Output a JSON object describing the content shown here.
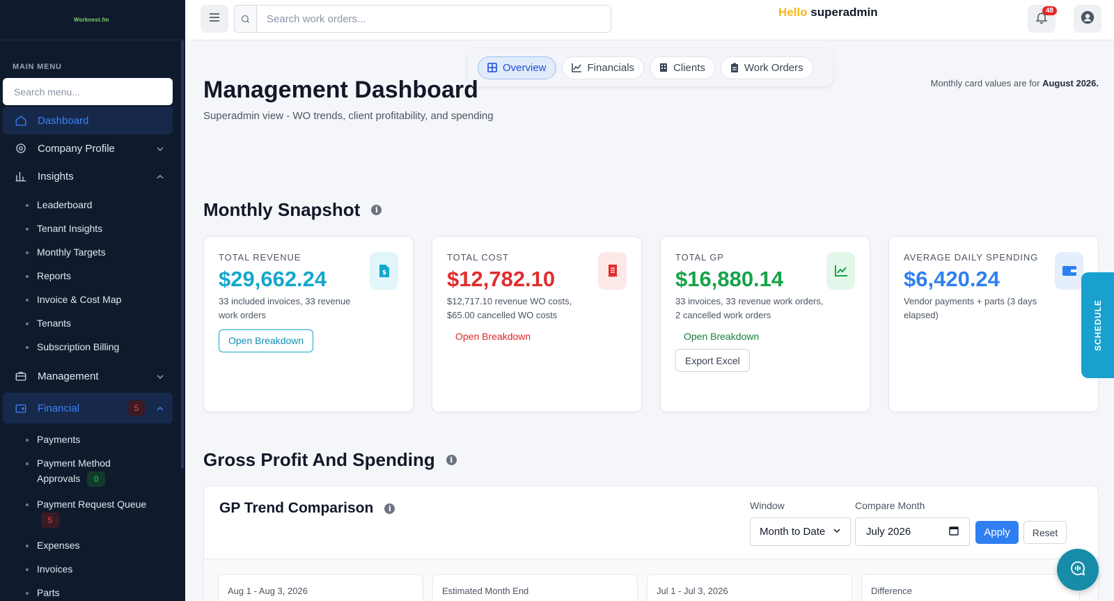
{
  "brand": "Worknest.fm",
  "sidebar": {
    "heading": "MAIN MENU",
    "search_placeholder": "Search menu...",
    "dashboard": "Dashboard",
    "company_profile": "Company Profile",
    "insights": "Insights",
    "insights_items": [
      "Leaderboard",
      "Tenant Insights",
      "Monthly Targets",
      "Reports",
      "Invoice & Cost Map",
      "Tenants",
      "Subscription Billing"
    ],
    "management": "Management",
    "financial": "Financial",
    "financial_badge": "5",
    "financial_items": {
      "payments": "Payments",
      "pma_line1": "Payment Method",
      "pma_line2": "Approvals",
      "pma_badge": "0",
      "prq": "Payment Request Queue",
      "prq_badge": "5",
      "expenses": "Expenses",
      "invoices": "Invoices",
      "parts": "Parts"
    }
  },
  "topbar": {
    "search_placeholder": "Search work orders...",
    "hello": "Hello",
    "username": "superadmin",
    "notification_count": "48"
  },
  "tabs": [
    "Overview",
    "Financials",
    "Clients",
    "Work Orders"
  ],
  "header": {
    "title": "Management Dashboard",
    "subtitle": "Superadmin view - WO trends, client profitability, and spending",
    "month_note_prefix": "Monthly card values are for",
    "month_note_month": "August 2026."
  },
  "snapshot": {
    "title": "Monthly Snapshot",
    "cards": [
      {
        "label": "TOTAL REVENUE",
        "value": "$29,662.24",
        "desc": "33 included invoices, 33 revenue work orders",
        "action": "Open Breakdown",
        "color": "#14a7cc"
      },
      {
        "label": "TOTAL COST",
        "value": "$12,782.10",
        "desc": "$12,717.10 revenue WO costs, $65.00 cancelled WO costs",
        "action": "Open Breakdown",
        "color": "#e02d2d"
      },
      {
        "label": "TOTAL GP",
        "value": "$16,880.14",
        "desc": "33 invoices, 33 revenue work orders, 2 cancelled work orders",
        "action": "Open Breakdown",
        "action2": "Export Excel",
        "color": "#16a34a"
      },
      {
        "label": "AVERAGE DAILY SPENDING",
        "value": "$6,420.24",
        "desc": "Vendor payments + parts (3 days elapsed)",
        "color": "#2f7ff0"
      }
    ]
  },
  "gross": {
    "title": "Gross Profit And Spending",
    "panel_title": "GP Trend Comparison",
    "window_label": "Window",
    "window_value": "Month to Date",
    "compare_label": "Compare Month",
    "compare_value": "July 2026",
    "apply": "Apply",
    "reset": "Reset",
    "mini": [
      "Aug 1 - Aug 3, 2026",
      "Estimated Month End",
      "Jul 1 - Jul 3, 2026",
      "Difference"
    ]
  },
  "schedule_label": "SCHEDULE"
}
